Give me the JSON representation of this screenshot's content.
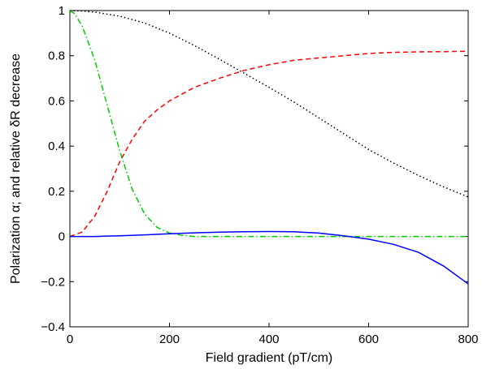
{
  "chart_data": {
    "type": "line",
    "title": "",
    "xlabel": "Field gradient (pT/cm)",
    "ylabel": "Polarization α; and relative δR decrease",
    "xlim": [
      0,
      800
    ],
    "ylim": [
      -0.4,
      1
    ],
    "xticks": [
      0,
      200,
      400,
      600,
      800
    ],
    "xtick_labels": [
      "0",
      "200",
      "400",
      "600",
      "800"
    ],
    "yticks": [
      -0.4,
      -0.2,
      0,
      0.2,
      0.4,
      0.6,
      0.8,
      1
    ],
    "ytick_labels": [
      "−0.4",
      "−0.2",
      "0",
      "0.2",
      "0.4",
      "0.6",
      "0.8",
      "1"
    ],
    "grid": false,
    "legend": "none",
    "series": [
      {
        "color": "#000000",
        "style": "dotted",
        "x": [
          0,
          25,
          50,
          100,
          150,
          200,
          250,
          300,
          340,
          400,
          450,
          500,
          550,
          600,
          650,
          700,
          750,
          800
        ],
        "y": [
          1.0,
          0.998,
          0.993,
          0.975,
          0.945,
          0.9,
          0.845,
          0.785,
          0.735,
          0.66,
          0.595,
          0.525,
          0.455,
          0.385,
          0.325,
          0.27,
          0.22,
          0.175
        ]
      },
      {
        "color": "#ff0000",
        "style": "dashed",
        "x": [
          0,
          25,
          50,
          75,
          100,
          125,
          150,
          175,
          200,
          250,
          300,
          350,
          400,
          450,
          500,
          550,
          600,
          650,
          700,
          750,
          800
        ],
        "y": [
          0.0,
          0.02,
          0.09,
          0.2,
          0.33,
          0.43,
          0.51,
          0.56,
          0.6,
          0.66,
          0.7,
          0.735,
          0.76,
          0.78,
          0.79,
          0.8,
          0.81,
          0.815,
          0.817,
          0.818,
          0.82
        ]
      },
      {
        "color": "#00cc00",
        "style": "dashdot",
        "x": [
          0,
          10,
          25,
          50,
          75,
          100,
          125,
          150,
          175,
          200,
          225,
          250,
          300,
          400,
          500,
          600,
          700,
          800
        ],
        "y": [
          1.0,
          0.985,
          0.93,
          0.78,
          0.58,
          0.38,
          0.21,
          0.1,
          0.04,
          0.015,
          0.005,
          0.0,
          0.0,
          0.0,
          0.0,
          0.0,
          0.0,
          0.0
        ]
      },
      {
        "color": "#0000ff",
        "style": "solid",
        "x": [
          0,
          50,
          100,
          150,
          200,
          250,
          300,
          350,
          400,
          450,
          500,
          550,
          600,
          650,
          700,
          750,
          800
        ],
        "y": [
          0.0,
          0.0,
          0.003,
          0.007,
          0.012,
          0.016,
          0.019,
          0.021,
          0.022,
          0.021,
          0.015,
          0.003,
          -0.012,
          -0.035,
          -0.07,
          -0.13,
          -0.21
        ]
      }
    ]
  }
}
